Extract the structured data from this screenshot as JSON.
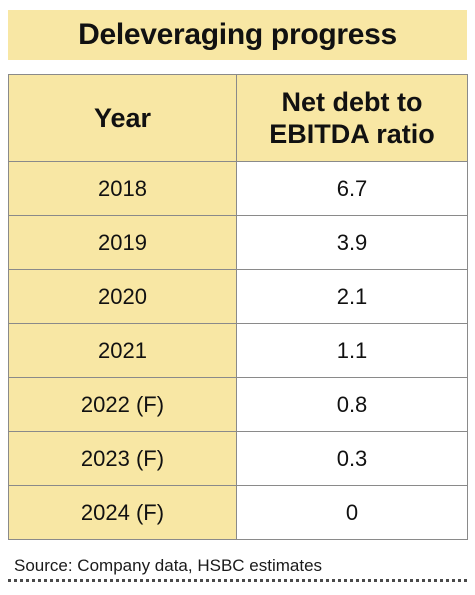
{
  "title": "Deleveraging progress",
  "chart_data": {
    "type": "table",
    "columns": [
      "Year",
      "Net debt to\nEBITDA ratio"
    ],
    "rows": [
      {
        "year": "2018",
        "value": "6.7"
      },
      {
        "year": "2019",
        "value": "3.9"
      },
      {
        "year": "2020",
        "value": "2.1"
      },
      {
        "year": "2021",
        "value": "1.1"
      },
      {
        "year": "2022 (F)",
        "value": "0.8"
      },
      {
        "year": "2023 (F)",
        "value": "0.3"
      },
      {
        "year": "2024 (F)",
        "value": "0"
      }
    ]
  },
  "source": "Source: Company data, HSBC estimates",
  "colors": {
    "header_fill": "#f8e7a4",
    "border": "#8a8a8a"
  }
}
